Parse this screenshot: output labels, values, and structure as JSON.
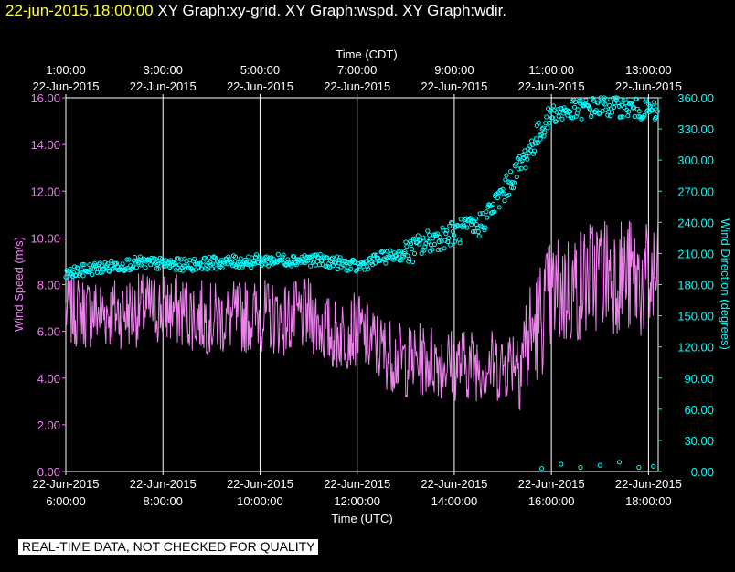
{
  "header": {
    "timestamp": "22-jun-2015,18:00:00",
    "titles": "XY Graph:xy-grid.  XY Graph:wspd.  XY Graph:wdir."
  },
  "footer": {
    "quality_note": "REAL-TIME DATA, NOT CHECKED FOR QUALITY"
  },
  "colors": {
    "background": "#000000",
    "axes": "#ffffff",
    "wspd": "#ee82ee",
    "wdir": "#00ffff",
    "header_timestamp": "#ffff33"
  },
  "chart_data": {
    "type": "line",
    "top_axis": {
      "label": "Time (CDT)",
      "ticks": [
        {
          "time": "1:00:00",
          "date": "22-Jun-2015"
        },
        {
          "time": "3:00:00",
          "date": "22-Jun-2015"
        },
        {
          "time": "5:00:00",
          "date": "22-Jun-2015"
        },
        {
          "time": "7:00:00",
          "date": "22-Jun-2015"
        },
        {
          "time": "9:00:00",
          "date": "22-Jun-2015"
        },
        {
          "time": "11:00:00",
          "date": "22-Jun-2015"
        },
        {
          "time": "13:00:00",
          "date": "22-Jun-2015"
        }
      ]
    },
    "bottom_axis": {
      "label": "Time (UTC)",
      "ticks": [
        {
          "time": "6:00:00",
          "date": "22-Jun-2015"
        },
        {
          "time": "8:00:00",
          "date": "22-Jun-2015"
        },
        {
          "time": "10:00:00",
          "date": "22-Jun-2015"
        },
        {
          "time": "12:00:00",
          "date": "22-Jun-2015"
        },
        {
          "time": "14:00:00",
          "date": "22-Jun-2015"
        },
        {
          "time": "16:00:00",
          "date": "22-Jun-2015"
        },
        {
          "time": "18:00:00",
          "date": "22-Jun-2015"
        }
      ],
      "xlim_utc_hours": [
        6,
        18.2
      ]
    },
    "left_axis": {
      "label": "Wind Speed (m/s)",
      "ylim": [
        0,
        16
      ],
      "ticks": [
        "0.00",
        "2.00",
        "4.00",
        "6.00",
        "8.00",
        "10.00",
        "12.00",
        "14.00",
        "16.00"
      ]
    },
    "right_axis": {
      "label": "Wind Direction (degrees)",
      "ylim": [
        0,
        360
      ],
      "ticks": [
        "0.00",
        "30.00",
        "60.00",
        "90.00",
        "120.00",
        "150.00",
        "180.00",
        "210.00",
        "240.00",
        "270.00",
        "300.00",
        "330.00",
        "360.00"
      ]
    },
    "grid": "vertical lines at bottom-axis ticks",
    "series": [
      {
        "name": "wspd",
        "style": "line",
        "axis": "left",
        "x_utc_hours": [
          6.0,
          6.5,
          7.0,
          7.5,
          8.0,
          8.5,
          9.0,
          9.5,
          10.0,
          10.5,
          11.0,
          11.5,
          12.0,
          12.5,
          13.0,
          13.5,
          14.0,
          14.5,
          15.0,
          15.5,
          16.0,
          16.5,
          17.0,
          17.5,
          18.0,
          18.2
        ],
        "values": [
          6.9,
          6.8,
          6.8,
          6.9,
          7.0,
          6.8,
          6.5,
          6.6,
          6.7,
          6.5,
          6.7,
          5.8,
          6.1,
          5.2,
          4.7,
          4.8,
          4.6,
          4.6,
          4.5,
          5.5,
          7.5,
          7.9,
          8.6,
          8.4,
          8.0,
          8.2
        ]
      },
      {
        "name": "wdir",
        "style": "markers",
        "axis": "right",
        "x_utc_hours": [
          6.0,
          6.5,
          7.0,
          7.5,
          8.0,
          8.5,
          9.0,
          9.5,
          10.0,
          10.5,
          11.0,
          11.5,
          12.0,
          12.5,
          13.0,
          13.5,
          14.0,
          14.5,
          15.0,
          15.5,
          16.0,
          16.5,
          17.0,
          17.5,
          18.0,
          18.2
        ],
        "values": [
          190,
          195,
          198,
          201,
          200,
          199,
          201,
          202,
          203,
          204,
          204,
          202,
          197,
          206,
          210,
          222,
          230,
          236,
          268,
          306,
          345,
          348,
          352,
          351,
          348,
          345
        ]
      }
    ],
    "wrap_points_near_zero": {
      "axis": "right",
      "x_utc_hours": [
        15.8,
        16.2,
        16.6,
        17.0,
        17.4,
        17.8,
        18.1
      ],
      "values": [
        3,
        7,
        4,
        6,
        9,
        4,
        5
      ]
    }
  }
}
